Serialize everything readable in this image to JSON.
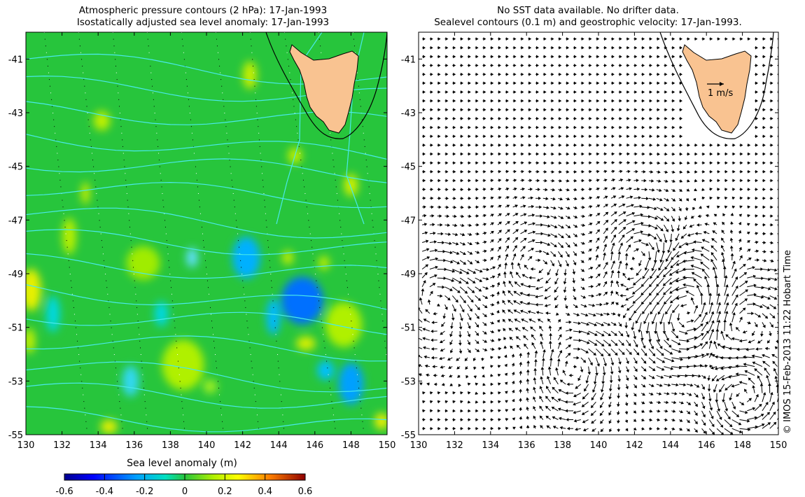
{
  "left_panel": {
    "title_line1": "Atmospheric pressure contours (2 hPa): 17-Jan-1993",
    "title_line2": "Isostatically adjusted sea level anomaly: 17-Jan-1993"
  },
  "right_panel": {
    "title_line1": "No SST data available.  No drifter data.",
    "title_line2": "Sealevel contours (0.1 m) and geostrophic velocity: 17-Jan-1993.",
    "scale_arrow_label": "1 m/s"
  },
  "axes": {
    "x_ticks": [
      "130",
      "132",
      "134",
      "136",
      "138",
      "140",
      "142",
      "144",
      "146",
      "148",
      "150"
    ],
    "y_ticks": [
      "-41",
      "-43",
      "-45",
      "-47",
      "-49",
      "-51",
      "-53",
      "-55"
    ],
    "lon_range": [
      130,
      150
    ],
    "lat_range": [
      -55,
      -40
    ]
  },
  "colorbar": {
    "title": "Sea level anomaly (m)",
    "ticks": [
      "-0.6",
      "-0.4",
      "-0.2",
      "0",
      "0.2",
      "0.4",
      "0.6"
    ],
    "range": [
      -0.6,
      0.6
    ],
    "colormap": "jet"
  },
  "credit": "© IMOS 15-Feb-2013 11:22 Hobart Time",
  "colors": {
    "land": "#f9c391",
    "contour": "#49e9e9",
    "sea_base": "#27c53c"
  }
}
